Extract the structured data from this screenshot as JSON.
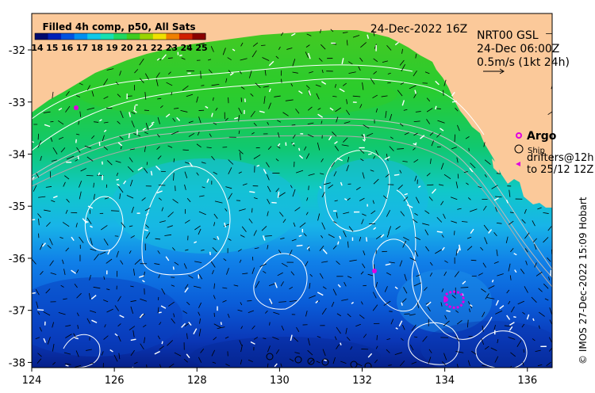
{
  "colorbar": {
    "title": "Filled 4h comp, p50, All Sats",
    "labels": [
      "14",
      "15",
      "16",
      "17",
      "18",
      "19",
      "20",
      "21",
      "22",
      "23",
      "24",
      "25"
    ],
    "colors": [
      "#000a6e",
      "#0020b8",
      "#0052e0",
      "#0090f0",
      "#10c8e8",
      "#18e0b0",
      "#20d860",
      "#40cc20",
      "#9ad400",
      "#f0e000",
      "#f08000",
      "#d02000",
      "#8a0000"
    ]
  },
  "date_title": "24-Dec-2022 16Z",
  "velocity": {
    "line1": "NRT00 GSL",
    "line2": "24-Dec 06:00Z",
    "line3": "0.5m/s (1kt 24h)"
  },
  "legend": {
    "argo": "Argo",
    "ship": "Ship",
    "drifters1": "drifters@12h",
    "drifters2": "to 25/12 12Z"
  },
  "credit": "© IMOS 27-Dec-2022 15:09 Hobart",
  "axes": {
    "x_ticks": [
      "124",
      "126",
      "128",
      "130",
      "132",
      "134",
      "136"
    ],
    "y_ticks": [
      "-32",
      "-33",
      "-34",
      "-35",
      "-36",
      "-37",
      "-38"
    ],
    "xlim": [
      124,
      136.6
    ],
    "ylim": [
      -38.1,
      -31.3
    ]
  },
  "colors": {
    "land": "#fbc99a",
    "argo": "#e000e0",
    "contour": "#ffffff"
  }
}
